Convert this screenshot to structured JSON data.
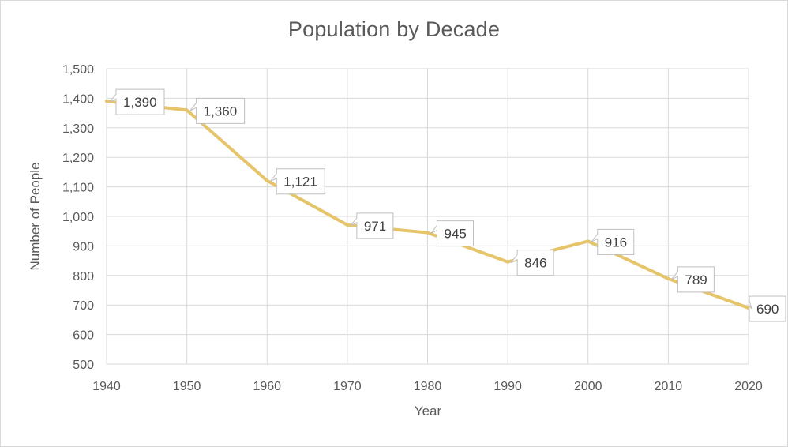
{
  "chart_data": {
    "type": "line",
    "title": "Population by Decade",
    "xlabel": "Year",
    "ylabel": "Number of People",
    "x": [
      1940,
      1950,
      1960,
      1970,
      1980,
      1990,
      2000,
      2010,
      2020
    ],
    "x_tick_labels": [
      "1940",
      "1950",
      "1960",
      "1970",
      "1980",
      "1990",
      "2000",
      "2010",
      "2020"
    ],
    "series": [
      {
        "name": "Population",
        "values": [
          1390,
          1360,
          1121,
          971,
          945,
          846,
          916,
          789,
          690
        ],
        "data_labels": [
          "1,390",
          "1,360",
          "1,121",
          "971",
          "945",
          "846",
          "916",
          "789",
          "690"
        ],
        "color": "#E6C46A"
      }
    ],
    "ylim": [
      500,
      1500
    ],
    "y_ticks": [
      500,
      600,
      700,
      800,
      900,
      1000,
      1100,
      1200,
      1300,
      1400,
      1500
    ],
    "y_tick_labels": [
      "500",
      "600",
      "700",
      "800",
      "900",
      "1,000",
      "1,100",
      "1,200",
      "1,300",
      "1,400",
      "1,500"
    ],
    "grid": true,
    "legend": "none"
  }
}
